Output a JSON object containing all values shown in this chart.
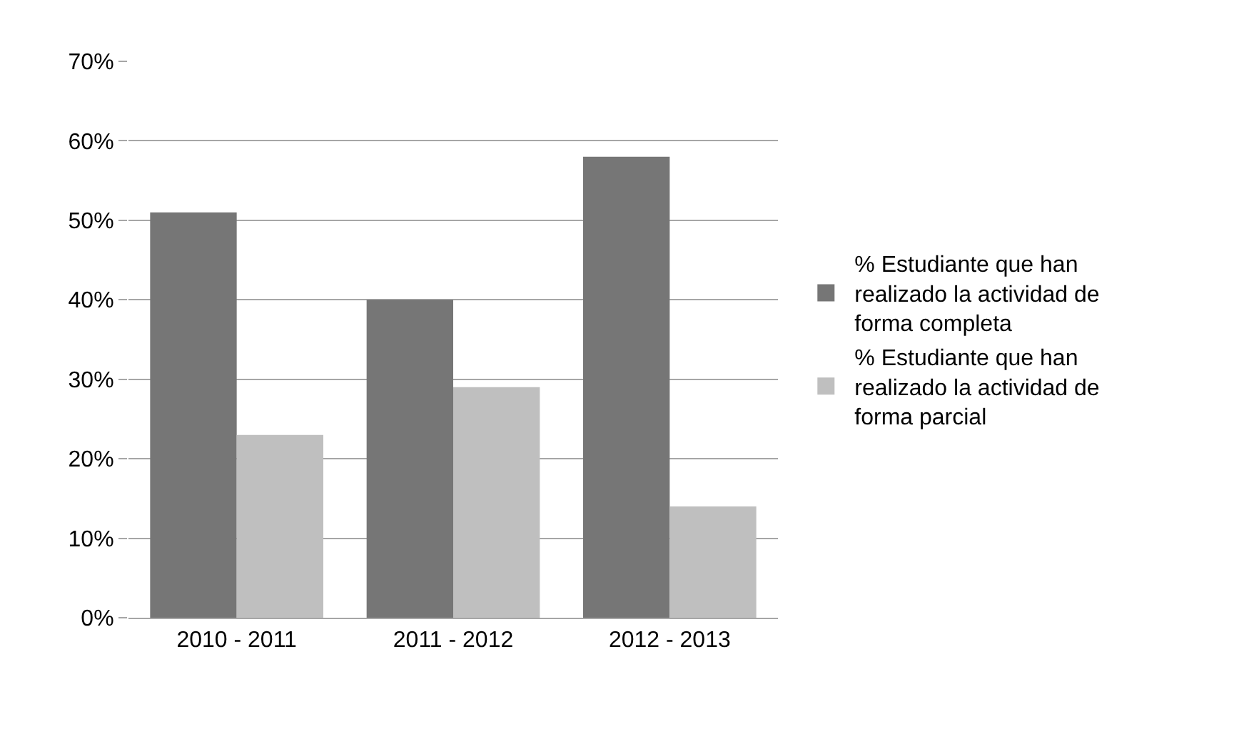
{
  "chart_data": {
    "type": "bar",
    "categories": [
      "2010 - 2011",
      "2011 - 2012",
      "2012 - 2013"
    ],
    "series": [
      {
        "name": "% Estudiante que han realizado la actividad de forma completa",
        "color": "#767676",
        "values": [
          0.51,
          0.4,
          0.58
        ]
      },
      {
        "name": "% Estudiante que han realizado la actividad de forma parcial",
        "color": "#bfbfbf",
        "values": [
          0.23,
          0.29,
          0.14
        ]
      }
    ],
    "ylim": [
      0,
      0.7
    ],
    "yticks": [
      {
        "value": 0,
        "label": "0%"
      },
      {
        "value": 0.1,
        "label": "10%"
      },
      {
        "value": 0.2,
        "label": "20%"
      },
      {
        "value": 0.3,
        "label": "30%"
      },
      {
        "value": 0.4,
        "label": "40%"
      },
      {
        "value": 0.5,
        "label": "50%"
      },
      {
        "value": 0.6,
        "label": "60%"
      },
      {
        "value": 0.7,
        "label": "70%"
      }
    ],
    "grid": "y",
    "legend": "right"
  }
}
